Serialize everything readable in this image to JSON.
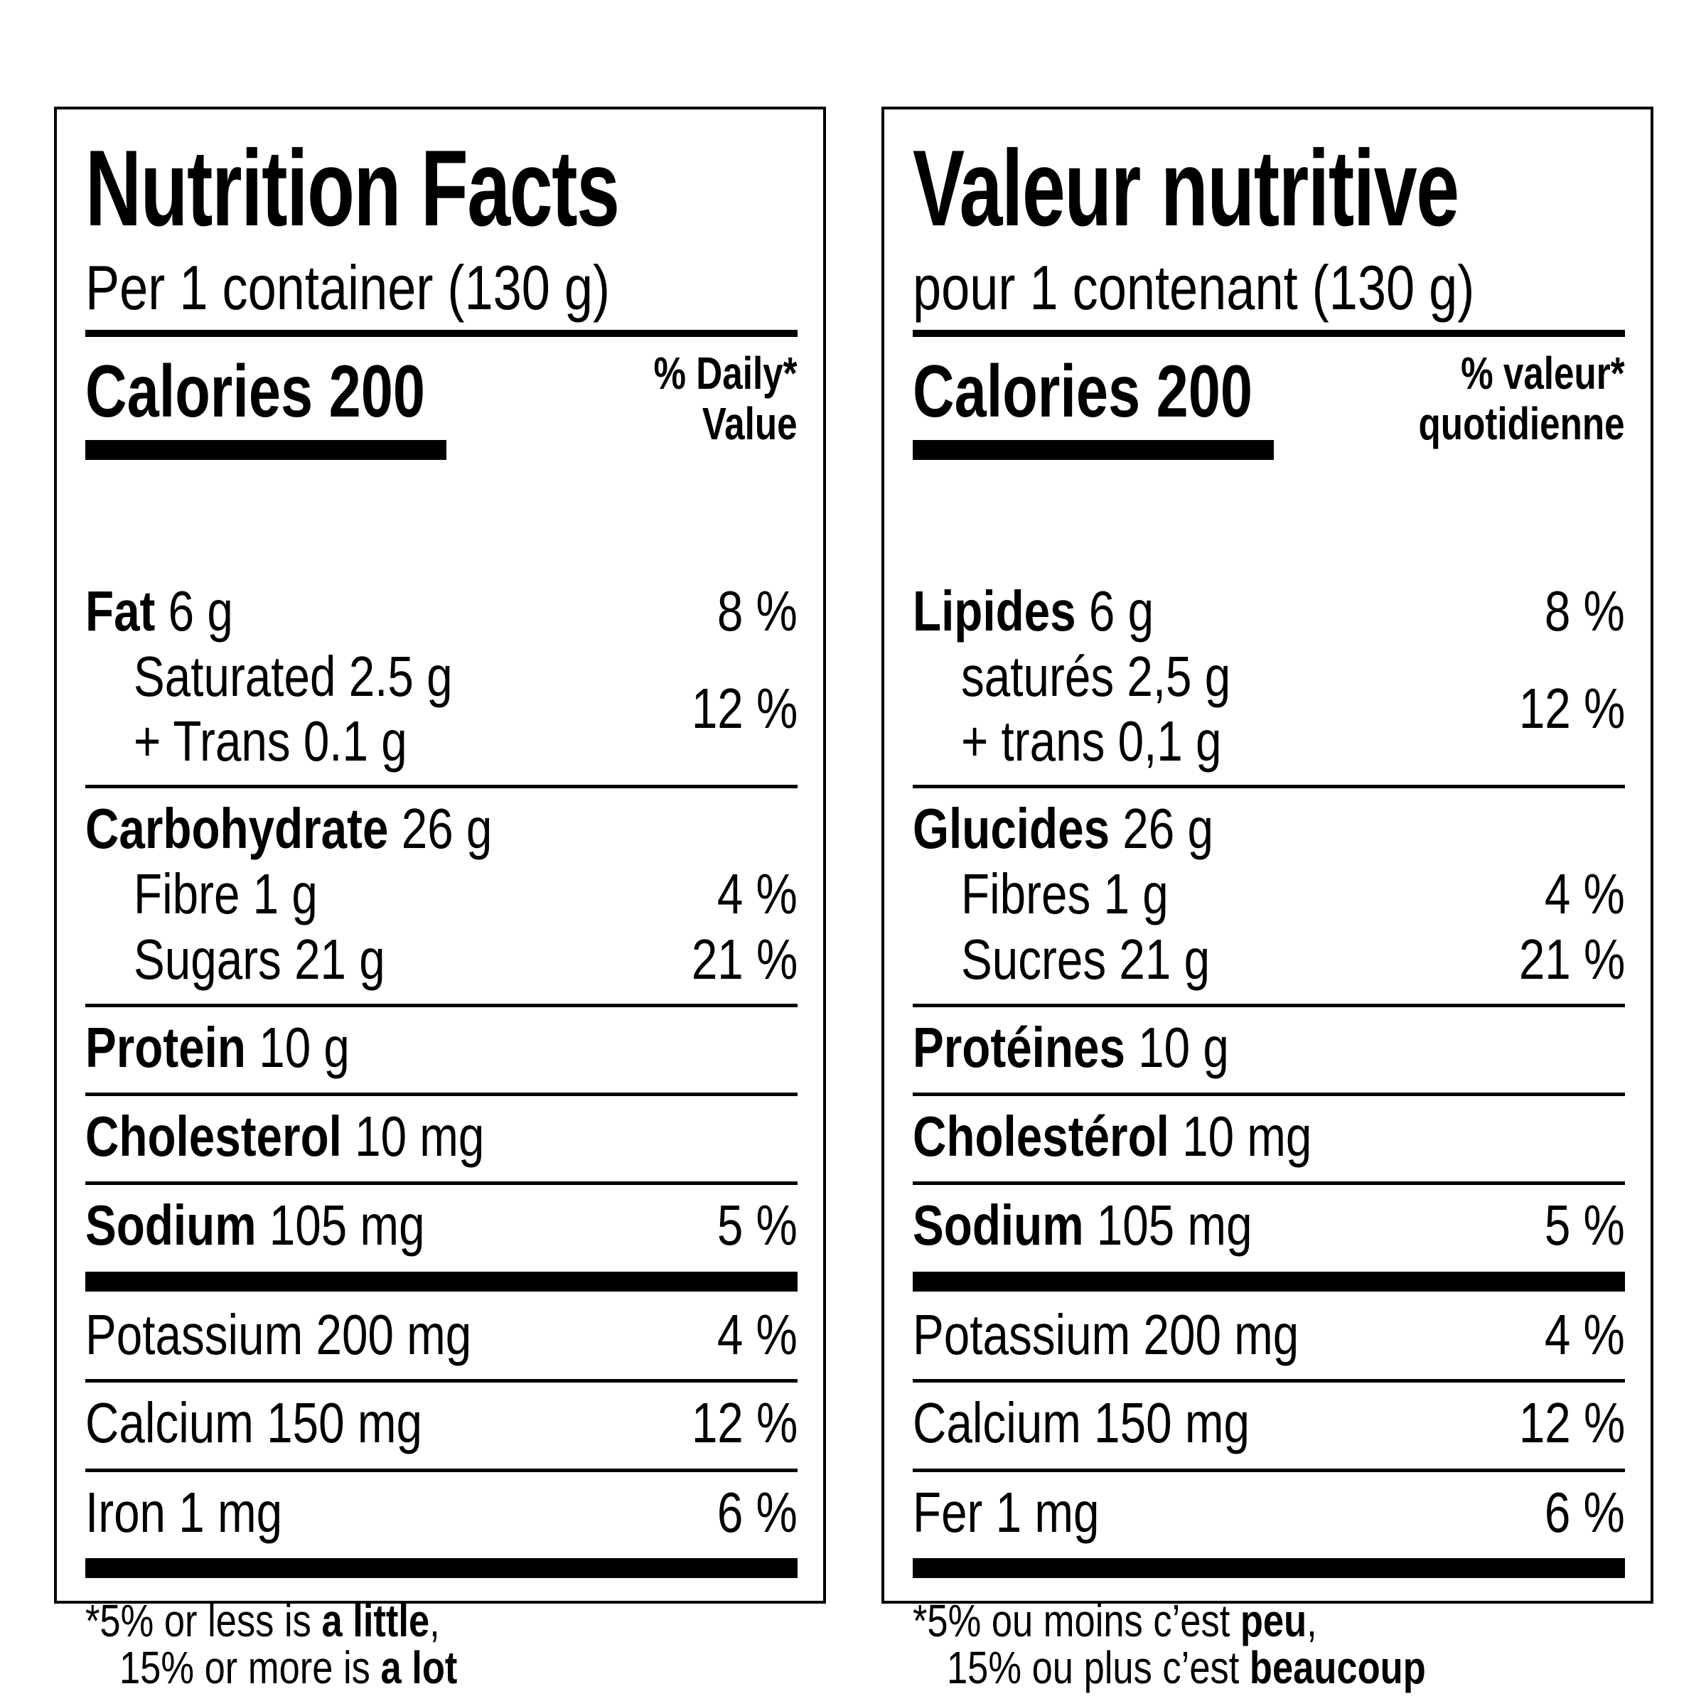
{
  "english": {
    "title": "Nutrition Facts",
    "serving": "Per 1 container (130 g)",
    "calories": "Calories 200",
    "dv_line1": "% Daily*",
    "dv_line2": "Value",
    "fat_label": "Fat",
    "fat_amount": " 6 g",
    "fat_pct": "8 %",
    "saturated": "Saturated 2.5 g",
    "trans": "+ Trans 0.1 g",
    "sat_trans_pct": "12 %",
    "carb_label": "Carbohydrate",
    "carb_amount": " 26 g",
    "fibre": "Fibre 1 g",
    "fibre_pct": "4 %",
    "sugars": "Sugars 21 g",
    "sugars_pct": "21 %",
    "protein_label": "Protein",
    "protein_amount": " 10 g",
    "chol_label": "Cholesterol",
    "chol_amount": " 10 mg",
    "sodium_label": "Sodium",
    "sodium_amount": " 105 mg",
    "sodium_pct": "5 %",
    "potassium": "Potassium 200 mg",
    "potassium_pct": "4 %",
    "calcium": "Calcium 150 mg",
    "calcium_pct": "12 %",
    "iron": "Iron 1 mg",
    "iron_pct": "6 %",
    "foot_star": "*",
    "foot1_pre": "5% or less is ",
    "foot1_bold": "a little",
    "foot1_post": ",",
    "foot2_pre": "15% or more is ",
    "foot2_bold": "a lot"
  },
  "french": {
    "title": "Valeur nutritive",
    "serving": "pour 1 contenant (130 g)",
    "calories": "Calories 200",
    "dv_line1": "% valeur*",
    "dv_line2": "quotidienne",
    "fat_label": "Lipides",
    "fat_amount": " 6 g",
    "fat_pct": "8 %",
    "saturated": "saturés 2,5 g",
    "trans": "+ trans 0,1 g",
    "sat_trans_pct": "12 %",
    "carb_label": "Glucides",
    "carb_amount": " 26 g",
    "fibre": "Fibres 1 g",
    "fibre_pct": "4 %",
    "sugars": "Sucres 21 g",
    "sugars_pct": "21 %",
    "protein_label": "Protéines",
    "protein_amount": " 10 g",
    "chol_label": "Cholestérol",
    "chol_amount": " 10 mg",
    "sodium_label": "Sodium",
    "sodium_amount": " 105 mg",
    "sodium_pct": "5 %",
    "potassium": "Potassium 200 mg",
    "potassium_pct": "4 %",
    "calcium": "Calcium 150 mg",
    "calcium_pct": "12 %",
    "iron": "Fer 1 mg",
    "iron_pct": "6 %",
    "foot_star": "*",
    "foot1_pre": "5% ou moins c’est ",
    "foot1_bold": "peu",
    "foot1_post": ",",
    "foot2_pre": "15% ou plus c’est ",
    "foot2_bold": "beaucoup"
  }
}
